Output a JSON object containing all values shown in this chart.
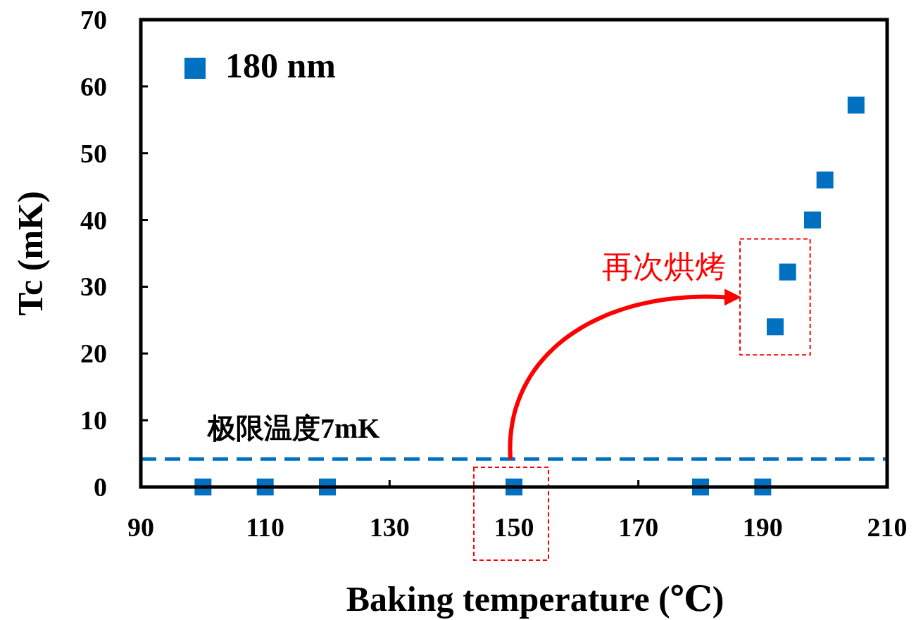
{
  "chart_data": {
    "type": "scatter",
    "xlabel": "Baking temperature (℃)",
    "ylabel": "Tc (mK)",
    "x": [
      100,
      110,
      120,
      150,
      180,
      190,
      192,
      194,
      198,
      200,
      205
    ],
    "series": [
      {
        "name": "180 nm",
        "color": "#0070c0",
        "values": [
          0,
          0,
          0,
          0,
          0,
          0,
          24,
          32.2,
          40,
          46,
          57.2
        ]
      }
    ],
    "marker": "square",
    "xlim": [
      90,
      210
    ],
    "xticks": [
      90,
      110,
      130,
      150,
      170,
      190,
      210
    ],
    "ylim": [
      0,
      70
    ],
    "yticks": [
      0,
      10,
      20,
      30,
      40,
      50,
      60,
      70
    ],
    "ref_lines": [
      {
        "axis": "y",
        "value": 4.2,
        "label": "极限温度7mK",
        "color": "#0070c0",
        "line_style": "dashed"
      }
    ],
    "annotations": [
      {
        "text": "再次烘烤",
        "x": 192,
        "y": 24
      }
    ],
    "legend": "top left",
    "grid": false
  }
}
